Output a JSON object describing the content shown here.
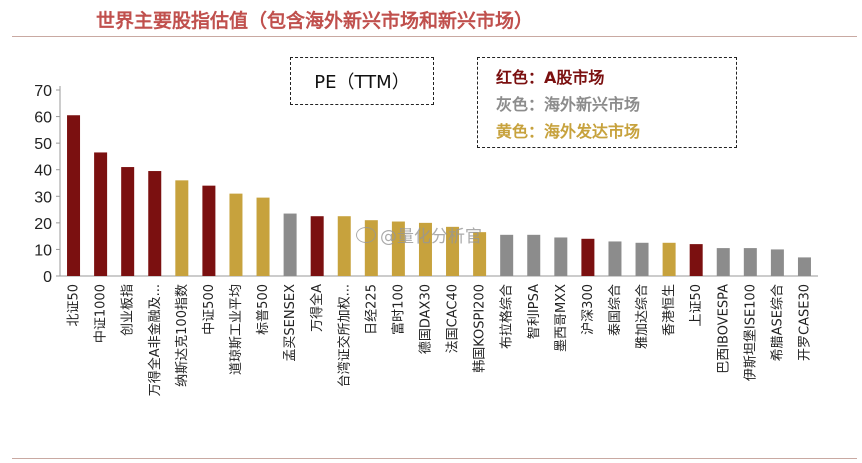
{
  "title": "世界主要股指估值（包含海外新兴市场和新兴市场）",
  "pe_label": "PE（TTM）",
  "legend": [
    {
      "label": "红色：A股市场",
      "color": "#7b1010"
    },
    {
      "label": "灰色：海外新兴市场",
      "color": "#8c8c8c"
    },
    {
      "label": "黄色：海外发达市场",
      "color": "#c7a23d"
    }
  ],
  "watermark": "@量化分析官",
  "colors": {
    "red": "#7b1010",
    "gray": "#8c8c8c",
    "gold": "#c7a23d"
  },
  "chart_data": {
    "type": "bar",
    "categories": [
      "北证50",
      "中证1000",
      "创业板指",
      "万得全A非金融及...",
      "纳斯达克100指数",
      "中证500",
      "道琼斯工业平均",
      "标普500",
      "孟买SENSEX",
      "万得全A",
      "台湾证交所加权...",
      "日经225",
      "富时100",
      "德国DAX30",
      "法国CAC40",
      "韩国KOSPI200",
      "布拉格综合",
      "智利IPSA",
      "墨西哥MXX",
      "沪深300",
      "泰国综合",
      "雅加达综合",
      "香港恒生",
      "上证50",
      "巴西IBOVESPA",
      "伊斯坦堡ISE100",
      "希腊ASE综合",
      "开罗CASE30"
    ],
    "values": [
      60.5,
      46.5,
      41,
      39.5,
      36,
      34,
      31,
      29.5,
      23.5,
      22.5,
      22.5,
      21,
      20.5,
      20,
      18.5,
      16.5,
      15.5,
      15.5,
      14.5,
      14,
      13,
      12.5,
      12.5,
      12,
      10.5,
      10.5,
      10,
      7
    ],
    "groups": [
      "red",
      "red",
      "red",
      "red",
      "gold",
      "red",
      "gold",
      "gold",
      "gray",
      "red",
      "gold",
      "gold",
      "gold",
      "gold",
      "gold",
      "gold",
      "gray",
      "gray",
      "gray",
      "red",
      "gray",
      "gray",
      "gold",
      "red",
      "gray",
      "gray",
      "gray",
      "gray"
    ],
    "yticks": [
      0,
      10,
      20,
      30,
      40,
      50,
      60,
      70
    ],
    "ylim": [
      0,
      70
    ]
  }
}
